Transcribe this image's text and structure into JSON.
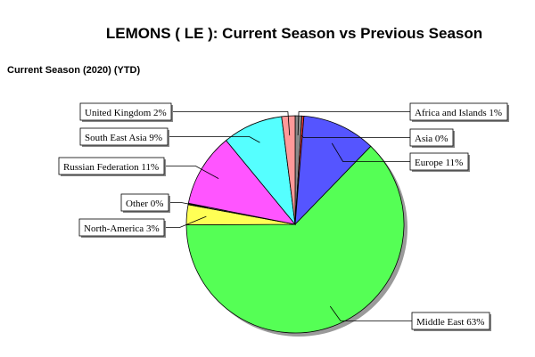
{
  "header": {
    "title": "LEMONS ( LE ): Current Season vs Previous Season",
    "subtitle": "Current Season (2020) (YTD)"
  },
  "chart_data": {
    "type": "pie",
    "title": "LEMONS ( LE ): Current Season vs Previous Season",
    "subtitle": "Current Season (2020) (YTD)",
    "slices": [
      {
        "label": "Africa and Islands 1%",
        "name": "Africa and Islands",
        "value": 1,
        "color": "#888888"
      },
      {
        "label": "Asia 0%",
        "name": "Asia",
        "value": 0.3,
        "color": "#ff4040"
      },
      {
        "label": "Europe 11%",
        "name": "Europe",
        "value": 11,
        "color": "#5555ff"
      },
      {
        "label": "Middle East 63%",
        "name": "Middle East",
        "value": 63,
        "color": "#55ff55"
      },
      {
        "label": "North-America 3%",
        "name": "North-America",
        "value": 3,
        "color": "#ffff55"
      },
      {
        "label": "Other 0%",
        "name": "Other",
        "value": 0.2,
        "color": "#aaaaaa"
      },
      {
        "label": "Russian Federation 11%",
        "name": "Russian Federation",
        "value": 11,
        "color": "#ff55ff"
      },
      {
        "label": "South East Asia 9%",
        "name": "South East Asia",
        "value": 9,
        "color": "#55ffff"
      },
      {
        "label": "United Kingdom 2%",
        "name": "United Kingdom",
        "value": 2,
        "color": "#ff9999"
      }
    ],
    "legend": "none"
  }
}
